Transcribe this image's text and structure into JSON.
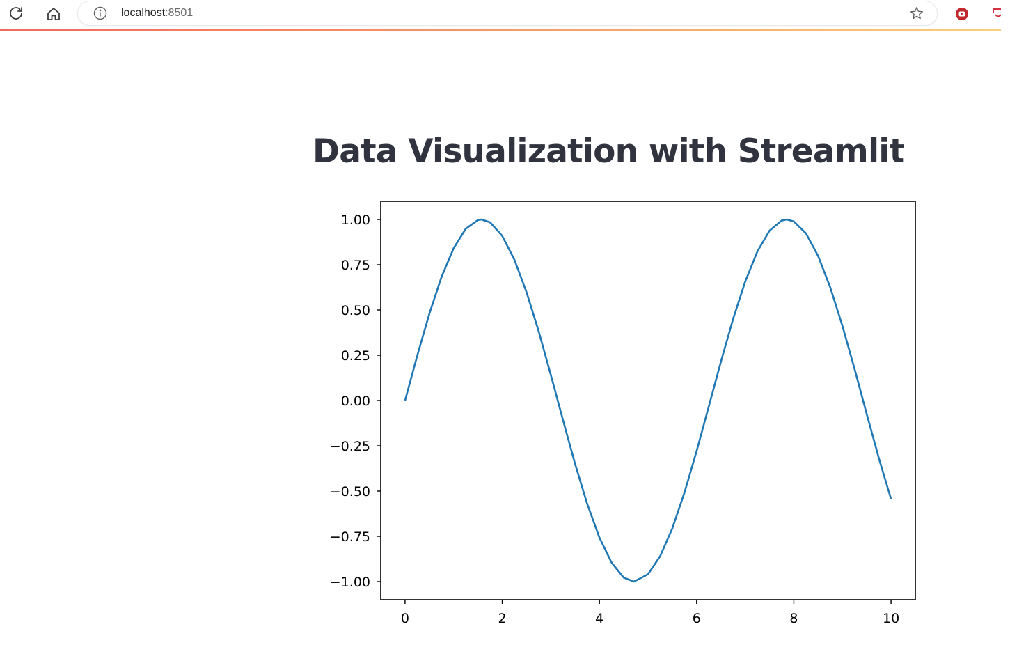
{
  "browser": {
    "url_host": "localhost",
    "url_port": ":8501",
    "icons": [
      "reload-icon",
      "home-icon",
      "site-info-icon",
      "bookmark-star-icon",
      "extension-icon"
    ]
  },
  "page": {
    "title": "Data Visualization with Streamlit"
  },
  "chart_data": {
    "type": "line",
    "title": "",
    "xlabel": "",
    "ylabel": "",
    "xlim": [
      -0.5,
      10.5
    ],
    "ylim": [
      -1.1,
      1.1
    ],
    "x_ticks": [
      "0",
      "2",
      "4",
      "6",
      "8",
      "10"
    ],
    "x_tick_values": [
      0,
      2,
      4,
      6,
      8,
      10
    ],
    "y_ticks": [
      "1.00",
      "0.75",
      "0.50",
      "0.25",
      "0.00",
      "−0.25",
      "−0.50",
      "−0.75",
      "−1.00"
    ],
    "y_tick_values": [
      1.0,
      0.75,
      0.5,
      0.25,
      0.0,
      -0.25,
      -0.5,
      -0.75,
      -1.0
    ],
    "series": [
      {
        "color": "#1f77b4",
        "x": [
          0,
          0.25,
          0.5,
          0.75,
          1.0,
          1.25,
          1.5,
          1.571,
          1.75,
          2.0,
          2.25,
          2.5,
          2.75,
          3.0,
          3.25,
          3.5,
          3.75,
          4.0,
          4.25,
          4.5,
          4.712,
          5.0,
          5.25,
          5.5,
          5.75,
          6.0,
          6.25,
          6.5,
          6.75,
          7.0,
          7.25,
          7.5,
          7.75,
          7.854,
          8.0,
          8.25,
          8.5,
          8.75,
          9.0,
          9.25,
          9.5,
          9.75,
          10.0
        ],
        "y": [
          0.0,
          0.247,
          0.479,
          0.682,
          0.841,
          0.949,
          0.997,
          1.0,
          0.984,
          0.909,
          0.778,
          0.598,
          0.382,
          0.141,
          -0.108,
          -0.351,
          -0.572,
          -0.757,
          -0.895,
          -0.978,
          -1.0,
          -0.959,
          -0.859,
          -0.706,
          -0.508,
          -0.279,
          -0.033,
          0.215,
          0.45,
          0.657,
          0.823,
          0.938,
          0.994,
          1.0,
          0.989,
          0.923,
          0.798,
          0.624,
          0.412,
          0.174,
          -0.075,
          -0.319,
          -0.544
        ]
      }
    ]
  }
}
